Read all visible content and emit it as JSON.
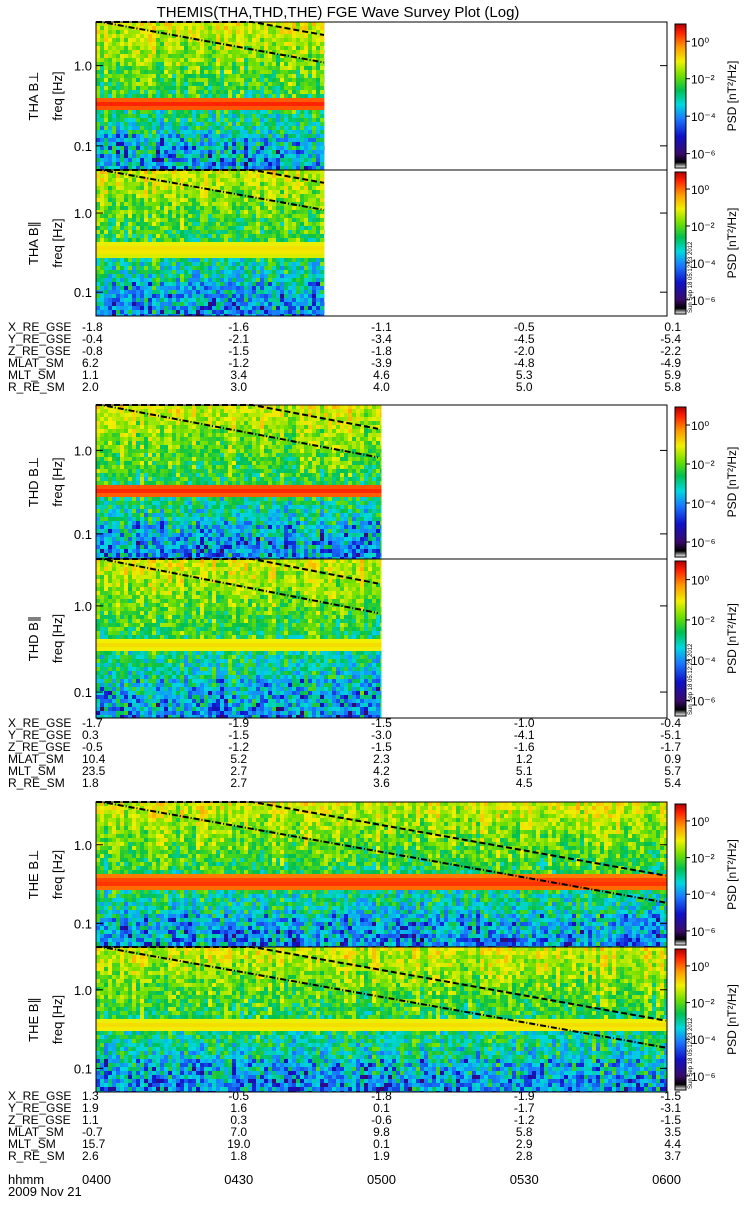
{
  "title": "THEMIS(THA,THD,THE) FGE Wave Survey Plot (Log)",
  "stamp": "Sun Sep 18 05:12:23 2012",
  "colorbar": {
    "label": "PSD [nT²/Hz]",
    "ticks": [
      "10⁰",
      "10⁻²",
      "10⁻⁴",
      "10⁻⁶"
    ]
  },
  "ylabel": "freq [Hz]",
  "yticks": [
    "1.0",
    "0.1"
  ],
  "date": "2009 Nov 21",
  "time_row": {
    "label": "hhmm",
    "values": [
      "0400",
      "0430",
      "0500",
      "0530",
      "0600"
    ]
  },
  "chart_data": [
    {
      "type": "heatmap",
      "probe": "THA",
      "panel_label": "THA B⊥",
      "x_range": [
        "0400",
        "0600"
      ],
      "data_end": "0448",
      "y_range_hz": [
        0.05,
        3.5
      ],
      "y_scale": "log",
      "band_hz": 0.33,
      "band_strength": "strong"
    },
    {
      "type": "heatmap",
      "probe": "THA",
      "panel_label": "THA B∥",
      "x_range": [
        "0400",
        "0600"
      ],
      "data_end": "0448",
      "y_range_hz": [
        0.05,
        3.5
      ],
      "y_scale": "log",
      "band_hz": 0.35,
      "band_strength": "weak"
    },
    {
      "type": "heatmap",
      "probe": "THD",
      "panel_label": "THD B⊥",
      "x_range": [
        "0400",
        "0600"
      ],
      "data_end": "0500",
      "y_range_hz": [
        0.05,
        3.5
      ],
      "y_scale": "log",
      "band_hz": 0.33,
      "band_strength": "strong"
    },
    {
      "type": "heatmap",
      "probe": "THD",
      "panel_label": "THD B∥",
      "x_range": [
        "0400",
        "0600"
      ],
      "data_end": "0500",
      "y_range_hz": [
        0.05,
        3.5
      ],
      "y_scale": "log",
      "band_hz": 0.35,
      "band_strength": "weak"
    },
    {
      "type": "heatmap",
      "probe": "THE",
      "panel_label": "THE B⊥",
      "x_range": [
        "0400",
        "0600"
      ],
      "data_end": "0600",
      "y_range_hz": [
        0.05,
        3.5
      ],
      "y_scale": "log",
      "band_hz": 0.33,
      "band_strength": "strong"
    },
    {
      "type": "heatmap",
      "probe": "THE",
      "panel_label": "THE B∥",
      "x_range": [
        "0400",
        "0600"
      ],
      "data_end": "0600",
      "y_range_hz": [
        0.05,
        3.5
      ],
      "y_scale": "log",
      "band_hz": 0.35,
      "band_strength": "weak"
    }
  ],
  "ephemeris": [
    {
      "probe": "THA",
      "rows": [
        {
          "label": "X_RE_GSE",
          "values": [
            "-1.8",
            "-1.6",
            "-1.1",
            "-0.5",
            "0.1"
          ]
        },
        {
          "label": "Y_RE_GSE",
          "values": [
            "-0.4",
            "-2.1",
            "-3.4",
            "-4.5",
            "-5.4"
          ]
        },
        {
          "label": "Z_RE_GSE",
          "values": [
            "-0.8",
            "-1.5",
            "-1.8",
            "-2.0",
            "-2.2"
          ]
        },
        {
          "label": "MLAT_SM",
          "values": [
            "6.2",
            "-1.2",
            "-3.9",
            "-4.8",
            "-4.9"
          ]
        },
        {
          "label": "MLT_SM",
          "values": [
            "1.1",
            "3.4",
            "4.6",
            "5.3",
            "5.9"
          ]
        },
        {
          "label": "R_RE_SM",
          "values": [
            "2.0",
            "3.0",
            "4.0",
            "5.0",
            "5.8"
          ]
        }
      ]
    },
    {
      "probe": "THD",
      "rows": [
        {
          "label": "X_RE_GSE",
          "values": [
            "-1.7",
            "-1.9",
            "-1.5",
            "-1.0",
            "-0.4"
          ]
        },
        {
          "label": "Y_RE_GSE",
          "values": [
            "0.3",
            "-1.5",
            "-3.0",
            "-4.1",
            "-5.1"
          ]
        },
        {
          "label": "Z_RE_GSE",
          "values": [
            "-0.5",
            "-1.2",
            "-1.5",
            "-1.6",
            "-1.7"
          ]
        },
        {
          "label": "MLAT_SM",
          "values": [
            "10.4",
            "5.2",
            "2.3",
            "1.2",
            "0.9"
          ]
        },
        {
          "label": "MLT_SM",
          "values": [
            "23.5",
            "2.7",
            "4.2",
            "5.1",
            "5.7"
          ]
        },
        {
          "label": "R_RE_SM",
          "values": [
            "1.8",
            "2.7",
            "3.6",
            "4.5",
            "5.4"
          ]
        }
      ]
    },
    {
      "probe": "THE",
      "rows": [
        {
          "label": "X_RE_GSE",
          "values": [
            "1.3",
            "-0.5",
            "-1.8",
            "-1.9",
            "-1.5"
          ]
        },
        {
          "label": "Y_RE_GSE",
          "values": [
            "1.9",
            "1.6",
            "0.1",
            "-1.7",
            "-3.1"
          ]
        },
        {
          "label": "Z_RE_GSE",
          "values": [
            "1.1",
            "0.3",
            "-0.6",
            "-1.2",
            "-1.5"
          ]
        },
        {
          "label": "MLAT_SM",
          "values": [
            "-0.7",
            "7.0",
            "9.8",
            "5.8",
            "3.5"
          ]
        },
        {
          "label": "MLT_SM",
          "values": [
            "15.7",
            "19.0",
            "0.1",
            "2.9",
            "4.4"
          ]
        },
        {
          "label": "R_RE_SM",
          "values": [
            "2.6",
            "1.8",
            "1.9",
            "2.8",
            "3.7"
          ]
        }
      ]
    }
  ]
}
